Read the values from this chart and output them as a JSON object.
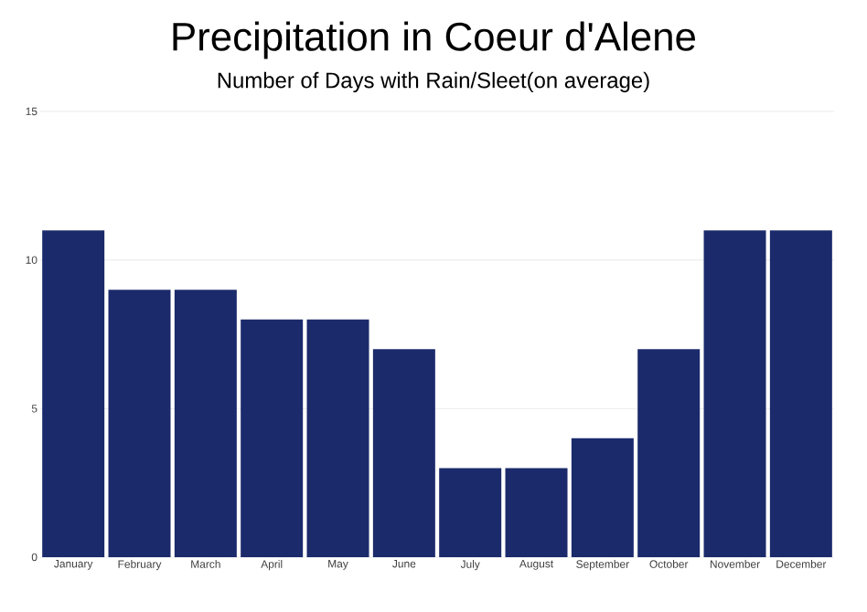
{
  "chart_data": {
    "type": "bar",
    "title": "Precipitation in Coeur d'Alene",
    "subtitle": "Number of Days with Rain/Sleet(on average)",
    "categories": [
      "January",
      "February",
      "March",
      "April",
      "May",
      "June",
      "July",
      "August",
      "September",
      "October",
      "November",
      "December"
    ],
    "values": [
      11,
      9,
      9,
      8,
      8,
      7,
      3,
      3,
      4,
      7,
      11,
      11
    ],
    "color": "#1b2a6b",
    "ylim": [
      0,
      15
    ],
    "yticks": [
      0,
      5,
      10,
      15
    ],
    "grid": "y"
  }
}
